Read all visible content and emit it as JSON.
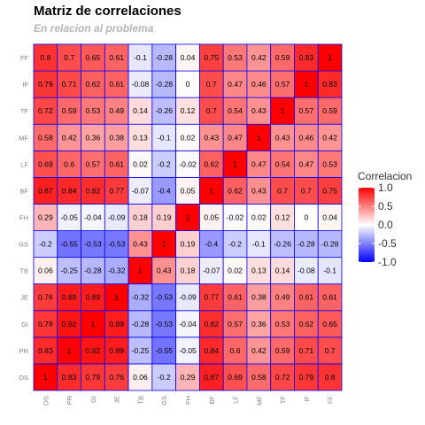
{
  "chart_data": {
    "type": "heatmap",
    "title": "Matriz de correlaciones",
    "subtitle": "En relacion al problema",
    "variables": [
      "OS",
      "PR",
      "GI",
      "JE",
      "TB",
      "GS",
      "FH",
      "BF",
      "LF",
      "MF",
      "TF",
      "IF",
      "FF"
    ],
    "matrix": [
      [
        1,
        0.83,
        0.79,
        0.76,
        0.06,
        -0.2,
        0.29,
        0.87,
        0.69,
        0.58,
        0.72,
        0.79,
        0.8
      ],
      [
        0.83,
        1,
        0.92,
        0.89,
        -0.25,
        -0.55,
        -0.05,
        0.84,
        0.6,
        0.42,
        0.59,
        0.71,
        0.7
      ],
      [
        0.79,
        0.92,
        1,
        0.89,
        -0.28,
        -0.53,
        -0.04,
        0.82,
        0.57,
        0.36,
        0.53,
        0.62,
        0.65
      ],
      [
        0.76,
        0.89,
        0.89,
        1,
        -0.32,
        -0.53,
        -0.09,
        0.77,
        0.61,
        0.38,
        0.49,
        0.61,
        0.61
      ],
      [
        0.06,
        -0.25,
        -0.28,
        -0.32,
        1,
        0.43,
        0.18,
        -0.07,
        0.02,
        0.13,
        0.14,
        -0.08,
        -0.1
      ],
      [
        -0.2,
        -0.55,
        -0.53,
        -0.53,
        0.43,
        1,
        0.19,
        -0.4,
        -0.2,
        -0.1,
        -0.26,
        -0.28,
        -0.28
      ],
      [
        0.29,
        -0.05,
        -0.04,
        -0.09,
        0.18,
        0.19,
        1,
        0.05,
        -0.02,
        0.02,
        0.12,
        0,
        0.04
      ],
      [
        0.87,
        0.84,
        0.82,
        0.77,
        -0.07,
        -0.4,
        0.05,
        1,
        0.62,
        0.43,
        0.7,
        0.7,
        0.75
      ],
      [
        0.69,
        0.6,
        0.57,
        0.61,
        0.02,
        -0.2,
        -0.02,
        0.62,
        1,
        0.47,
        0.54,
        0.47,
        0.53
      ],
      [
        0.58,
        0.42,
        0.36,
        0.38,
        0.13,
        -0.1,
        0.02,
        0.43,
        0.47,
        1,
        0.43,
        0.46,
        0.42
      ],
      [
        0.72,
        0.59,
        0.53,
        0.49,
        0.14,
        -0.26,
        0.12,
        0.7,
        0.54,
        0.43,
        1,
        0.57,
        0.59
      ],
      [
        0.79,
        0.71,
        0.62,
        0.61,
        -0.08,
        -0.28,
        0,
        0.7,
        0.47,
        0.46,
        0.57,
        1,
        0.83
      ],
      [
        0.8,
        0.7,
        0.65,
        0.61,
        -0.1,
        -0.28,
        0.04,
        0.75,
        0.53,
        0.42,
        0.59,
        0.83,
        1
      ]
    ],
    "legend": {
      "title": "Correlacion",
      "ticks": [
        1.0,
        0.5,
        0.0,
        -0.5,
        -1.0
      ],
      "tick_labels": [
        "1.0",
        "0.5",
        "0.0",
        "-0.5",
        "-1.0"
      ],
      "range": [
        -1,
        1
      ],
      "placement": "right"
    },
    "colors": {
      "low": "#0000ff",
      "mid": "#ffffff",
      "high": "#ff0000",
      "cell_border": "#0000ff"
    }
  }
}
